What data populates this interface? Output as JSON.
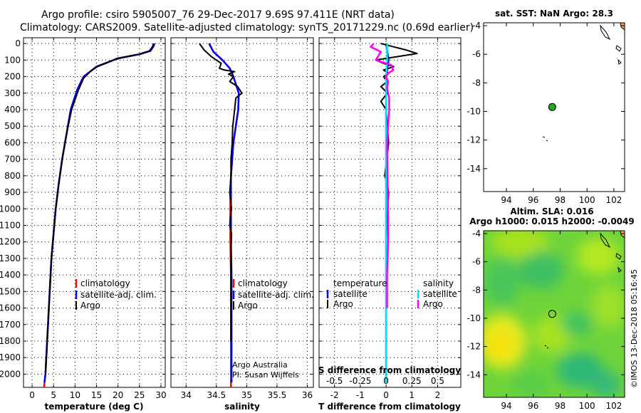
{
  "title": {
    "line1": "Argo profile: csiro 5905007_76 29-Dec-2017 9.69S 97.411E (NRT data)",
    "line2": "Climatology: CARS2009. Satellite-adjusted climatology: synTS_20171229.nc (0.69d earlier)"
  },
  "colors": {
    "climatology": "#ff0000",
    "satellite": "#0000ff",
    "argo": "#000000",
    "sal_sat": "#00e5ee",
    "sal_argo": "#ff00ff",
    "map_pin": "#22aa22"
  },
  "depth_ticks": [
    "0",
    "100",
    "200",
    "300",
    "400",
    "500",
    "600",
    "700",
    "800",
    "900",
    "1000",
    "1100",
    "1200",
    "1300",
    "1400",
    "1500",
    "1600",
    "1700",
    "1800",
    "1900",
    "2000"
  ],
  "depth_values": [
    0,
    100,
    200,
    300,
    400,
    500,
    600,
    700,
    800,
    900,
    1000,
    1100,
    1200,
    1300,
    1400,
    1500,
    1600,
    1700,
    1800,
    1900,
    2000
  ],
  "chart_data": [
    {
      "type": "line",
      "name": "temperature",
      "xlabel": "temperature (deg C)",
      "ylabel": "depth",
      "xlim": [
        -2,
        31
      ],
      "ylim": [
        2080,
        -35
      ],
      "xticks": [
        "0",
        "5",
        "10",
        "15",
        "20",
        "25",
        "30"
      ],
      "xtick_values": [
        0,
        5,
        10,
        15,
        20,
        25,
        30
      ],
      "legend": [
        "climatology",
        "satellite-adj. clim.",
        "Argo"
      ],
      "series": [
        {
          "name": "climatology",
          "x": [
            28.5,
            28.2,
            27.5,
            25,
            20,
            15,
            12,
            10.5,
            9,
            8,
            7,
            6.2,
            5.5,
            5,
            4.5,
            4.2,
            3.9,
            3.6,
            3.3,
            3.1,
            2.9,
            2.8
          ],
          "y": [
            0,
            20,
            45,
            65,
            90,
            140,
            200,
            280,
            400,
            550,
            700,
            850,
            1000,
            1150,
            1300,
            1450,
            1600,
            1750,
            1900,
            2000,
            2050,
            2080
          ]
        },
        {
          "name": "satellite-adj. clim.",
          "x": [
            28.5,
            28.2,
            27.5,
            25,
            20,
            15,
            12,
            10.5,
            9,
            8,
            7,
            6.2,
            5.5,
            5,
            4.5,
            4.2,
            3.9,
            3.6,
            3.3,
            3.1,
            2.9
          ],
          "y": [
            0,
            20,
            45,
            65,
            90,
            140,
            200,
            280,
            400,
            550,
            700,
            850,
            1000,
            1150,
            1300,
            1450,
            1600,
            1750,
            1900,
            2000,
            2050
          ]
        },
        {
          "name": "Argo",
          "x": [
            28.3,
            28,
            27.3,
            24.8,
            19.8,
            15.2,
            13.5,
            12,
            10.8,
            9.2,
            8,
            7,
            6.2,
            5.5,
            5,
            4.5,
            4.2,
            3.9,
            3.6,
            3.3,
            3.1
          ],
          "y": [
            0,
            20,
            45,
            65,
            90,
            140,
            170,
            210,
            280,
            400,
            550,
            700,
            850,
            1000,
            1150,
            1300,
            1450,
            1600,
            1750,
            1900,
            2000
          ]
        }
      ]
    },
    {
      "type": "line",
      "name": "salinity",
      "xlabel": "salinity",
      "ylabel": "depth",
      "xlim": [
        33.75,
        36.1
      ],
      "ylim": [
        2080,
        -35
      ],
      "xticks": [
        "34",
        "34.5",
        "35",
        "35.5",
        "36"
      ],
      "xtick_values": [
        34,
        34.5,
        35,
        35.5,
        36
      ],
      "legend": [
        "climatology",
        "satellite-adj. clim.",
        "Argo"
      ],
      "series": [
        {
          "name": "climatology",
          "x": [
            34.38,
            34.45,
            34.6,
            34.72,
            34.78,
            34.87,
            34.86,
            34.82,
            34.78,
            34.76,
            34.74,
            34.73,
            34.73,
            34.73,
            34.74,
            34.74,
            34.74,
            34.74,
            34.74,
            34.74
          ],
          "y": [
            0,
            50,
            100,
            150,
            200,
            300,
            400,
            500,
            600,
            700,
            800,
            900,
            1000,
            1200,
            1400,
            1600,
            1800,
            1950,
            2050,
            2080
          ]
        },
        {
          "name": "satellite-adj. clim.",
          "x": [
            34.38,
            34.45,
            34.6,
            34.72,
            34.78,
            34.87,
            34.86,
            34.82,
            34.78,
            34.76,
            34.74,
            34.74,
            34.74,
            34.74,
            34.75,
            34.75,
            34.75,
            34.75,
            34.75
          ],
          "y": [
            0,
            50,
            100,
            150,
            200,
            300,
            400,
            500,
            600,
            700,
            800,
            900,
            1000,
            1200,
            1400,
            1600,
            1800,
            1950,
            2050
          ]
        },
        {
          "name": "Argo",
          "x": [
            34.22,
            34.3,
            34.42,
            34.58,
            34.55,
            34.63,
            34.8,
            34.7,
            34.78,
            34.72,
            34.85,
            34.92,
            34.82,
            34.8,
            34.77,
            34.76,
            34.74,
            34.74,
            34.72,
            34.75,
            34.73,
            34.72,
            34.75,
            34.74,
            34.74,
            34.74,
            34.74
          ],
          "y": [
            0,
            40,
            80,
            120,
            150,
            160,
            170,
            185,
            200,
            230,
            260,
            300,
            330,
            400,
            500,
            600,
            700,
            800,
            900,
            1000,
            1050,
            1100,
            1150,
            1250,
            1400,
            1600,
            1800
          ]
        }
      ]
    },
    {
      "type": "line",
      "name": "difference from climatology",
      "xlabel": "T difference from climatology",
      "xlabel2": "S difference from climatology",
      "xlim": [
        -2.6,
        2.9
      ],
      "ylim": [
        2080,
        -35
      ],
      "xticks": [
        "-2",
        "-1",
        "0",
        "1",
        "2"
      ],
      "xtick_values": [
        -2,
        -1,
        0,
        1,
        2
      ],
      "s_ticks": [
        "-0.5",
        "-0.25",
        "0",
        "0.25",
        "0.5"
      ],
      "s_tick_values": [
        -0.5,
        -0.25,
        0,
        0.25,
        0.5
      ],
      "legend_headers": [
        "temperature",
        "salinity"
      ],
      "legend_t": [
        "satellite",
        "Argo"
      ],
      "legend_s": [
        "satellite",
        "Argo"
      ],
      "series": [
        {
          "name": "T satellite",
          "x": [
            0,
            0.05,
            0.1,
            0.05,
            0,
            0,
            0,
            0,
            0,
            0,
            0
          ],
          "y": [
            0,
            50,
            100,
            150,
            200,
            400,
            800,
            1200,
            1600,
            2000,
            2050
          ]
        },
        {
          "name": "T Argo",
          "x": [
            -0.2,
            0.3,
            0.8,
            1.2,
            0.4,
            -0.4,
            -0.1,
            0.3,
            -0.1,
            0.1,
            -0.1,
            0.05,
            -0.2,
            0.05,
            -0.2,
            0,
            0.1,
            -0.05,
            0.05,
            0.1,
            0,
            0
          ],
          "y": [
            0,
            20,
            40,
            60,
            80,
            100,
            120,
            140,
            160,
            180,
            200,
            230,
            260,
            300,
            350,
            400,
            600,
            800,
            850,
            900,
            1200,
            1600
          ]
        },
        {
          "name": "S satellite",
          "x": [
            0.01,
            0.01,
            0.0,
            0.0,
            0.0,
            0.0,
            0.0,
            0.0,
            0.0
          ],
          "y": [
            0,
            100,
            200,
            400,
            800,
            1200,
            1600,
            2000,
            2050
          ]
        },
        {
          "name": "S Argo",
          "x": [
            -0.12,
            -0.15,
            -0.05,
            -0.1,
            0.05,
            0.07,
            0.02,
            0.0,
            0.02,
            0.01,
            0.02,
            0.03,
            0.03,
            0.01,
            0.02,
            0.02,
            0.02,
            0.01,
            0.01
          ],
          "y": [
            0,
            20,
            50,
            100,
            130,
            160,
            180,
            200,
            230,
            270,
            300,
            330,
            400,
            600,
            1050,
            1100,
            1200,
            1400,
            1600
          ]
        }
      ]
    },
    {
      "type": "scatter",
      "name": "sat SST map",
      "title": "sat. SST: NaN Argo: 28.3",
      "xlim": [
        92.3,
        102.8
      ],
      "ylim": [
        -15.6,
        -3.8
      ],
      "xticks": [
        "94",
        "96",
        "98",
        "100",
        "102"
      ],
      "xtick_values": [
        94,
        96,
        98,
        100,
        102
      ],
      "yticks": [
        "-4",
        "-6",
        "-8",
        "-10",
        "-12",
        "-14"
      ],
      "ytick_values": [
        -4,
        -6,
        -8,
        -10,
        -12,
        -14
      ],
      "points": [
        {
          "lon": 97.41,
          "lat": -9.69
        }
      ]
    },
    {
      "type": "heatmap",
      "name": "altimetry map",
      "title1": "Altim. SLA: 0.016",
      "title2": "Argo h1000: 0.015 h2000: -0.0049",
      "xlim": [
        92.3,
        102.8
      ],
      "ylim": [
        -15.6,
        -3.8
      ],
      "xticks": [
        "94",
        "96",
        "98",
        "100",
        "102"
      ],
      "xtick_values": [
        94,
        96,
        98,
        100,
        102
      ],
      "yticks": [
        "-4",
        "-6",
        "-8",
        "-10",
        "-12",
        "-14"
      ],
      "ytick_values": [
        -4,
        -6,
        -8,
        -10,
        -12,
        -14
      ],
      "points": [
        {
          "lon": 97.41,
          "lat": -9.69
        }
      ]
    }
  ],
  "credits": {
    "line1": "Argo Australia",
    "line2": "PI: Susan Wijffels"
  },
  "stamp": "©IMOS 13-Dec-2018 05:16:45"
}
